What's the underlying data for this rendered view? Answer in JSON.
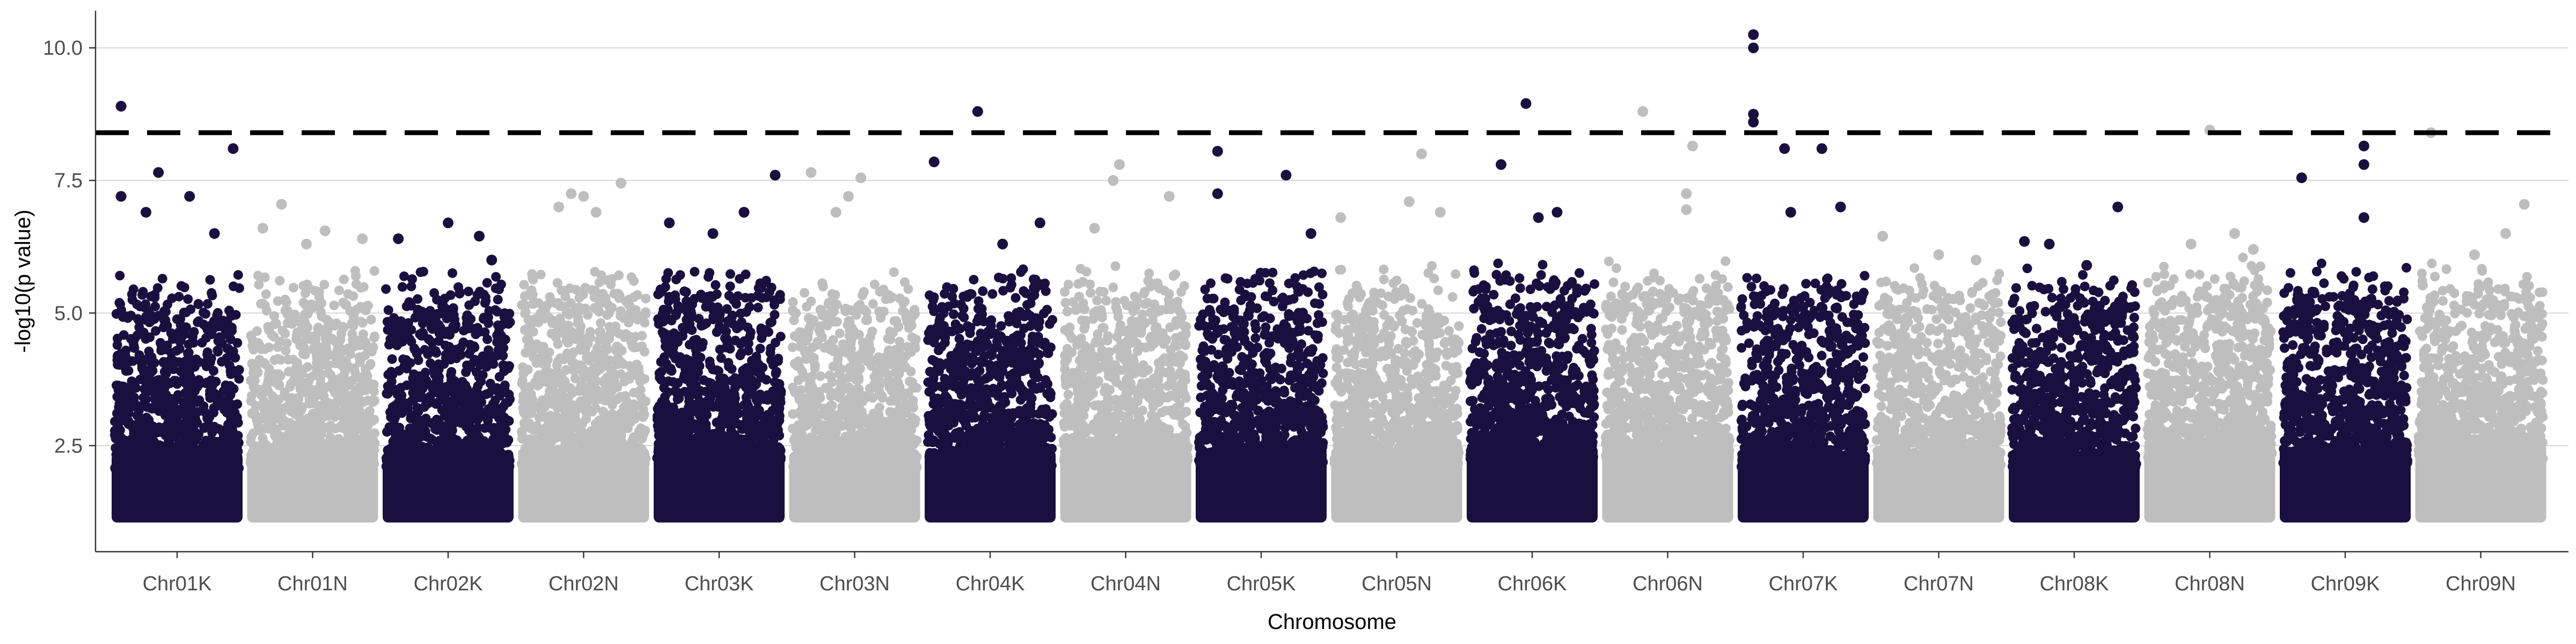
{
  "chart_data": {
    "type": "scatter",
    "title": "",
    "xlabel": "Chromosome",
    "ylabel": "-log10(p value)",
    "ylim": [
      0.5,
      10.7
    ],
    "yticks": [
      2.5,
      5.0,
      7.5,
      10.0
    ],
    "ytick_labels": [
      "2.5",
      "5.0",
      "7.5",
      "10.0"
    ],
    "grid": "horizontal-major",
    "legend": "none",
    "threshold": {
      "value": 8.4,
      "style": "dashed",
      "color": "#000000"
    },
    "colors": {
      "odd": "#1a1040",
      "even": "#bebebe"
    },
    "categories": [
      "Chr01K",
      "Chr01N",
      "Chr02K",
      "Chr02N",
      "Chr03K",
      "Chr03N",
      "Chr04K",
      "Chr04N",
      "Chr05K",
      "Chr05N",
      "Chr06K",
      "Chr06N",
      "Chr07K",
      "Chr07N",
      "Chr08K",
      "Chr08N",
      "Chr09K",
      "Chr09N"
    ],
    "series": [
      {
        "chromosome": "Chr01K",
        "color": "#1a1040",
        "top_points": [
          [
            0.05,
            8.9
          ],
          [
            0.35,
            7.65
          ],
          [
            0.6,
            7.2
          ],
          [
            0.95,
            8.1
          ],
          [
            0.05,
            7.2
          ],
          [
            0.25,
            6.9
          ],
          [
            0.8,
            6.5
          ]
        ]
      },
      {
        "chromosome": "Chr01N",
        "color": "#bebebe",
        "top_points": [
          [
            0.25,
            7.05
          ],
          [
            0.1,
            6.6
          ],
          [
            0.6,
            6.55
          ],
          [
            0.9,
            6.4
          ],
          [
            0.45,
            6.3
          ]
        ]
      },
      {
        "chromosome": "Chr02K",
        "color": "#1a1040",
        "top_points": [
          [
            0.5,
            6.7
          ],
          [
            0.1,
            6.4
          ],
          [
            0.75,
            6.45
          ],
          [
            0.85,
            6.0
          ]
        ]
      },
      {
        "chromosome": "Chr02N",
        "color": "#bebebe",
        "top_points": [
          [
            0.4,
            7.25
          ],
          [
            0.5,
            7.2
          ],
          [
            0.8,
            7.45
          ],
          [
            0.3,
            7.0
          ],
          [
            0.6,
            6.9
          ]
        ]
      },
      {
        "chromosome": "Chr03K",
        "color": "#1a1040",
        "top_points": [
          [
            0.1,
            6.7
          ],
          [
            0.95,
            7.6
          ],
          [
            0.7,
            6.9
          ],
          [
            0.45,
            6.5
          ]
        ]
      },
      {
        "chromosome": "Chr03N",
        "color": "#bebebe",
        "top_points": [
          [
            0.15,
            7.65
          ],
          [
            0.45,
            7.2
          ],
          [
            0.55,
            7.55
          ],
          [
            0.35,
            6.9
          ]
        ]
      },
      {
        "chromosome": "Chr04K",
        "color": "#1a1040",
        "top_points": [
          [
            0.4,
            8.8
          ],
          [
            0.05,
            7.85
          ],
          [
            0.9,
            6.7
          ],
          [
            0.6,
            6.3
          ]
        ]
      },
      {
        "chromosome": "Chr04N",
        "color": "#bebebe",
        "top_points": [
          [
            0.45,
            7.8
          ],
          [
            0.4,
            7.5
          ],
          [
            0.85,
            7.2
          ],
          [
            0.25,
            6.6
          ]
        ]
      },
      {
        "chromosome": "Chr05K",
        "color": "#1a1040",
        "top_points": [
          [
            0.15,
            8.05
          ],
          [
            0.7,
            7.6
          ],
          [
            0.15,
            7.25
          ],
          [
            0.9,
            6.5
          ]
        ]
      },
      {
        "chromosome": "Chr05N",
        "color": "#bebebe",
        "top_points": [
          [
            0.7,
            8.0
          ],
          [
            0.6,
            7.1
          ],
          [
            0.05,
            6.8
          ],
          [
            0.85,
            6.9
          ]
        ]
      },
      {
        "chromosome": "Chr06K",
        "color": "#1a1040",
        "top_points": [
          [
            0.45,
            8.95
          ],
          [
            0.25,
            7.8
          ],
          [
            0.7,
            6.9
          ],
          [
            0.55,
            6.8
          ]
        ]
      },
      {
        "chromosome": "Chr06N",
        "color": "#bebebe",
        "top_points": [
          [
            0.3,
            8.8
          ],
          [
            0.7,
            8.15
          ],
          [
            0.65,
            7.25
          ],
          [
            0.65,
            6.95
          ]
        ]
      },
      {
        "chromosome": "Chr07K",
        "color": "#1a1040",
        "top_points": [
          [
            0.1,
            10.25
          ],
          [
            0.1,
            10.0
          ],
          [
            0.1,
            8.75
          ],
          [
            0.1,
            8.6
          ],
          [
            0.65,
            8.1
          ],
          [
            0.35,
            8.1
          ],
          [
            0.4,
            6.9
          ],
          [
            0.8,
            7.0
          ]
        ]
      },
      {
        "chromosome": "Chr07N",
        "color": "#bebebe",
        "top_points": [
          [
            0.05,
            6.45
          ],
          [
            0.5,
            6.1
          ],
          [
            0.8,
            6.0
          ]
        ]
      },
      {
        "chromosome": "Chr08K",
        "color": "#1a1040",
        "top_points": [
          [
            0.85,
            7.0
          ],
          [
            0.3,
            6.3
          ],
          [
            0.6,
            5.9
          ],
          [
            0.1,
            6.35
          ]
        ]
      },
      {
        "chromosome": "Chr08N",
        "color": "#bebebe",
        "top_points": [
          [
            0.5,
            8.45
          ],
          [
            0.7,
            6.5
          ],
          [
            0.35,
            6.3
          ],
          [
            0.85,
            6.2
          ]
        ]
      },
      {
        "chromosome": "Chr09K",
        "color": "#1a1040",
        "top_points": [
          [
            0.65,
            8.15
          ],
          [
            0.15,
            7.55
          ],
          [
            0.65,
            7.8
          ],
          [
            0.65,
            6.8
          ]
        ]
      },
      {
        "chromosome": "Chr09N",
        "color": "#bebebe",
        "top_points": [
          [
            0.1,
            8.4
          ],
          [
            0.45,
            6.1
          ],
          [
            0.7,
            6.5
          ],
          [
            0.85,
            7.05
          ]
        ]
      }
    ]
  }
}
